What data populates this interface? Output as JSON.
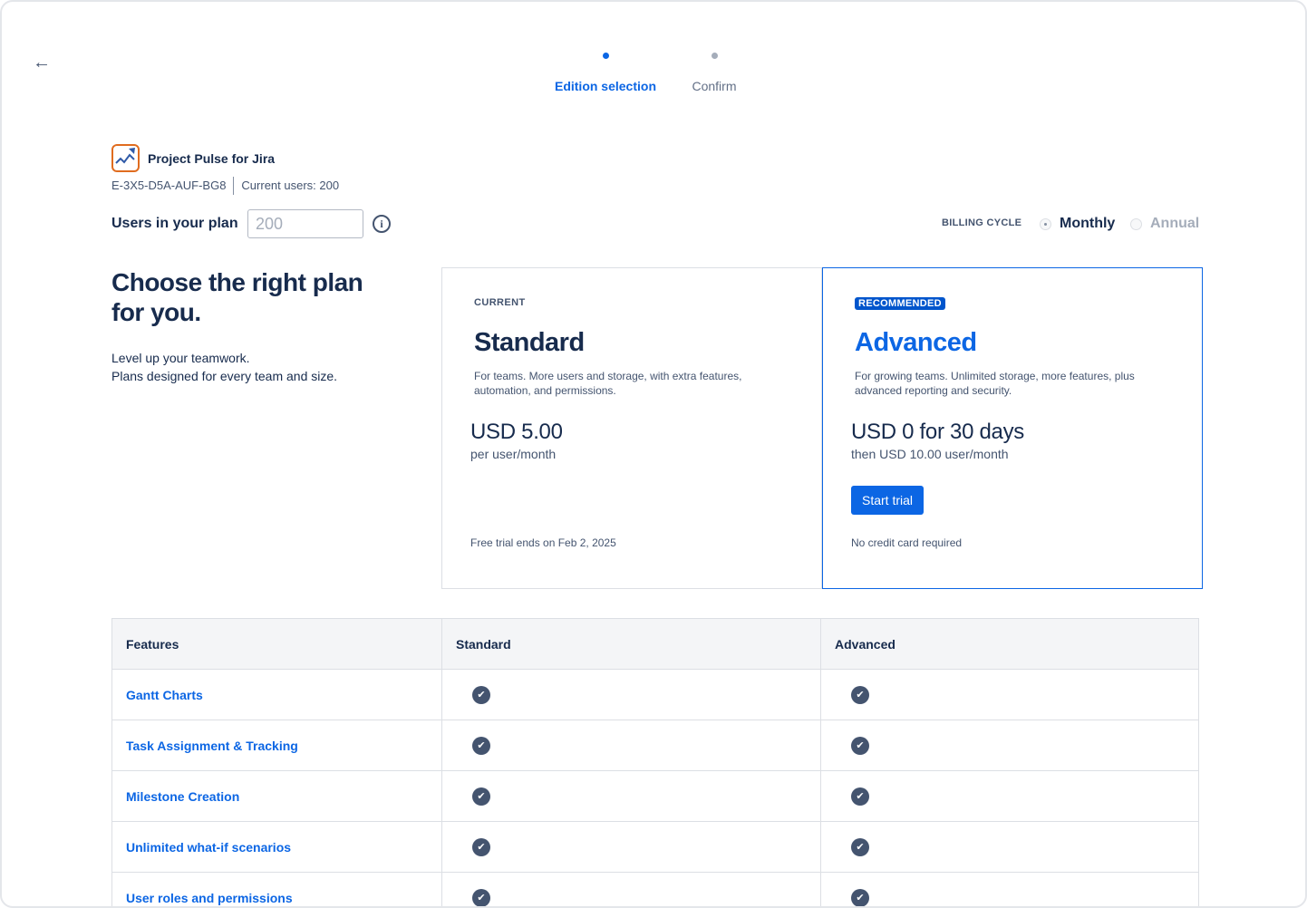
{
  "nav": {
    "back_icon": "arrow-left-icon"
  },
  "steps": [
    {
      "label": "Edition selection",
      "active": true
    },
    {
      "label": "Confirm",
      "active": false
    }
  ],
  "app": {
    "name": "Project Pulse for Jira",
    "license": "E-3X5-D5A-AUF-BG8",
    "current_users": "Current users: 200"
  },
  "users": {
    "label": "Users in your plan",
    "value": "200"
  },
  "billing": {
    "label": "BILLING CYCLE",
    "options": [
      "Monthly",
      "Annual"
    ],
    "selected": "Monthly"
  },
  "intro": {
    "headline": "Choose the right plan for you.",
    "line1": "Level up your teamwork.",
    "line2": "Plans designed for every team and size."
  },
  "plans": [
    {
      "tag": "CURRENT",
      "name": "Standard",
      "desc": "For teams. More users and storage, with extra features, automation, and permissions.",
      "price": "USD 5.00",
      "unit": "per user/month",
      "foot": "Free trial ends on Feb 2, 2025"
    },
    {
      "tag": "RECOMMENDED",
      "name": "Advanced",
      "desc": "For growing teams. Unlimited storage, more features, plus advanced reporting and security.",
      "price": "USD 0 for 30 days",
      "unit": "then USD 10.00 user/month",
      "button": "Start trial",
      "foot": "No credit card required"
    }
  ],
  "table": {
    "headers": [
      "Features",
      "Standard",
      "Advanced"
    ],
    "rows": [
      "Gantt Charts",
      "Task Assignment & Tracking",
      "Milestone Creation",
      "Unlimited what-if scenarios",
      "User roles and permissions"
    ]
  },
  "colors": {
    "accent": "#0c66e4",
    "text": "#172b4d",
    "badge": "#0055cc"
  }
}
